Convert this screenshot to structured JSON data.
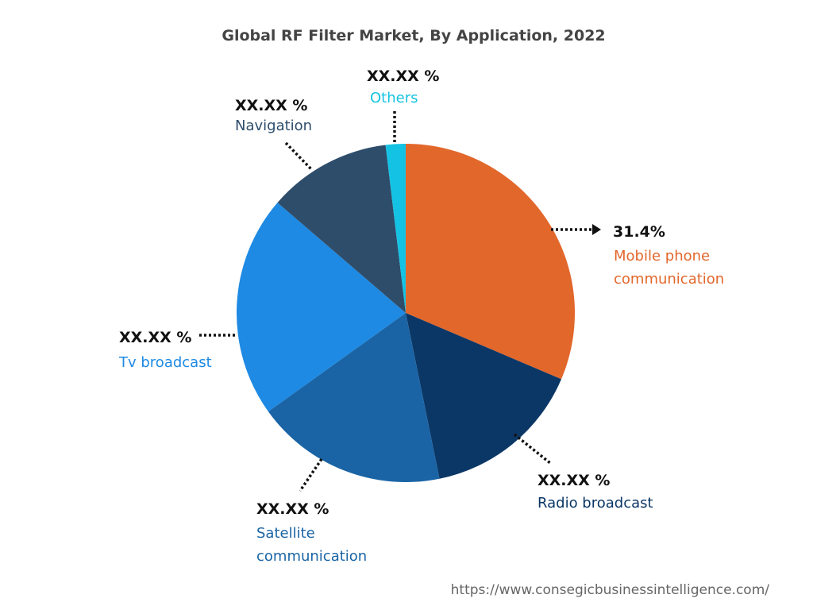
{
  "chart_data": {
    "type": "pie",
    "title": "Global RF Filter Market, By Application, 2022",
    "start_angle_deg": 0,
    "direction": "clockwise",
    "slices": [
      {
        "name": "Mobile phone communication",
        "lines": [
          "Mobile phone",
          "communication"
        ],
        "value": 31.4,
        "label": "31.4%",
        "color": "#E2672B"
      },
      {
        "name": "Radio broadcast",
        "lines": [
          "Radio broadcast"
        ],
        "value": 15.4,
        "label": "XX.XX %",
        "color": "#0B3766"
      },
      {
        "name": "Satellite communication",
        "lines": [
          "Satellite",
          "communication"
        ],
        "value": 18.3,
        "label": "XX.XX %",
        "color": "#1A64A5"
      },
      {
        "name": "Tv broadcast",
        "lines": [
          "Tv broadcast"
        ],
        "value": 21.2,
        "label": "XX.XX %",
        "color": "#1E8AE3"
      },
      {
        "name": "Navigation",
        "lines": [
          "Navigation"
        ],
        "value": 11.8,
        "label": "XX.XX %",
        "color": "#2E4D6B"
      },
      {
        "name": "Others",
        "lines": [
          "Others"
        ],
        "value": 1.9,
        "label": "XX.XX %",
        "color": "#14C3E3"
      }
    ]
  },
  "source_url": "https://www.consegicbusinessintelligence.com/"
}
